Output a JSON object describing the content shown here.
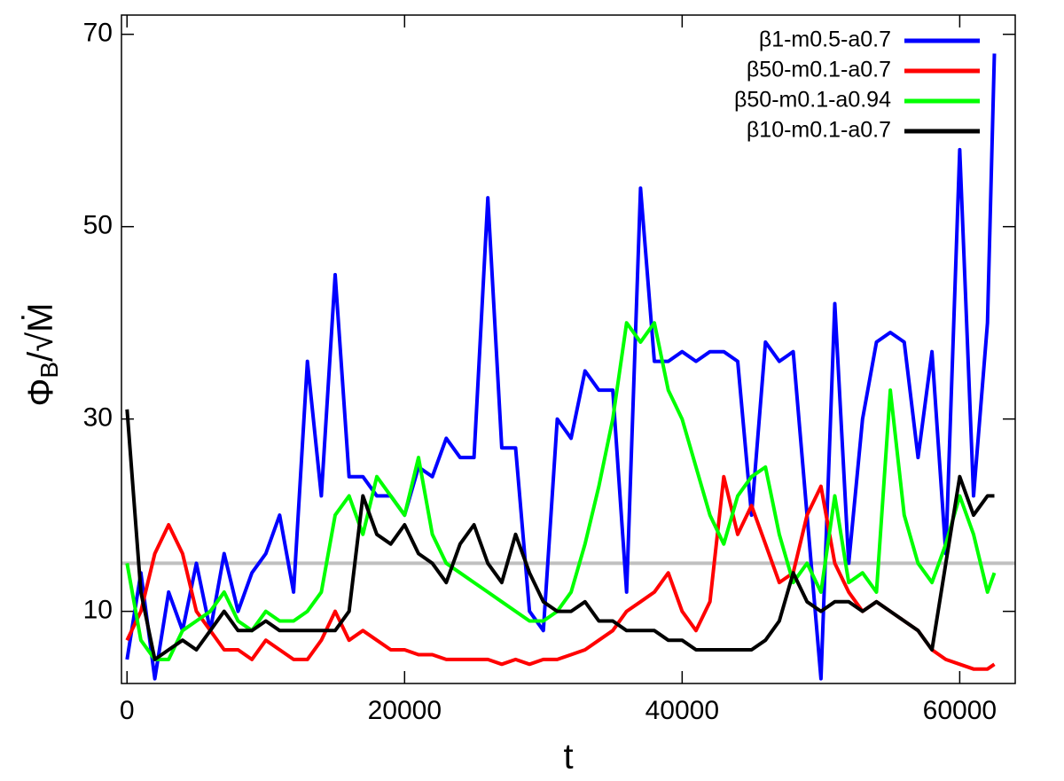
{
  "chart_data": {
    "type": "line",
    "xlabel": "t",
    "ylabel": [
      "Φ",
      "B",
      "/√Ṁ"
    ],
    "xlim": [
      -400,
      64000
    ],
    "ylim": [
      2.5,
      72
    ],
    "xticks": [
      0,
      20000,
      40000,
      60000
    ],
    "yticks": [
      10,
      30,
      50,
      70
    ],
    "legend": "upper right",
    "hline": {
      "value": 15,
      "color": "#c0c0c0"
    },
    "x": [
      0,
      1000,
      2000,
      3000,
      4000,
      5000,
      6000,
      7000,
      8000,
      9000,
      10000,
      11000,
      12000,
      13000,
      14000,
      15000,
      16000,
      17000,
      18000,
      19000,
      20000,
      21000,
      22000,
      23000,
      24000,
      25000,
      26000,
      27000,
      28000,
      29000,
      30000,
      31000,
      32000,
      33000,
      34000,
      35000,
      36000,
      37000,
      38000,
      39000,
      40000,
      41000,
      42000,
      43000,
      44000,
      45000,
      46000,
      47000,
      48000,
      49000,
      50000,
      51000,
      52000,
      53000,
      54000,
      55000,
      56000,
      57000,
      58000,
      59000,
      60000,
      61000,
      62000,
      62500
    ],
    "series": [
      {
        "name": "β1-m0.5-a0.7",
        "color": "#0000ff",
        "values": [
          5,
          14,
          3,
          12,
          8,
          15,
          8,
          16,
          10,
          14,
          16,
          20,
          12,
          36,
          22,
          45,
          24,
          24,
          22,
          22,
          20,
          25,
          24,
          28,
          26,
          26,
          53,
          27,
          27,
          10,
          8,
          30,
          28,
          35,
          33,
          33,
          12,
          54,
          36,
          36,
          37,
          36,
          37,
          37,
          36,
          20,
          38,
          36,
          37,
          20,
          3,
          42,
          15,
          30,
          38,
          39,
          38,
          26,
          37,
          16,
          58,
          22,
          40,
          68
        ]
      },
      {
        "name": "β50-m0.1-a0.7",
        "color": "#ff0000",
        "values": [
          7,
          10,
          16,
          19,
          16,
          10,
          8,
          6,
          6,
          5,
          7,
          6,
          5,
          5,
          7,
          10,
          7,
          8,
          7,
          6,
          6,
          5.5,
          5.5,
          5,
          5,
          5,
          5,
          4.5,
          5,
          4.5,
          5,
          5,
          5.5,
          6,
          7,
          8,
          10,
          11,
          12,
          14,
          10,
          8,
          11,
          24,
          18,
          21,
          17,
          13,
          14,
          20,
          23,
          15,
          12,
          10,
          11,
          10,
          9,
          8,
          6,
          5,
          4.5,
          4,
          4,
          4.5
        ]
      },
      {
        "name": "β50-m0.1-a0.94",
        "color": "#00ff00",
        "values": [
          15,
          7,
          5,
          5,
          8,
          9,
          10,
          12,
          9,
          8,
          10,
          9,
          9,
          10,
          12,
          20,
          22,
          18,
          24,
          22,
          20,
          26,
          18,
          15,
          14,
          13,
          12,
          11,
          10,
          9,
          9,
          10,
          12,
          17,
          23,
          30,
          40,
          38,
          40,
          33,
          30,
          25,
          20,
          17,
          22,
          24,
          25,
          18,
          13,
          15,
          12,
          22,
          13,
          14,
          12,
          33,
          20,
          15,
          13,
          17,
          22,
          18,
          12,
          14
        ]
      },
      {
        "name": "β10-m0.1-a0.7",
        "color": "#000000",
        "values": [
          31,
          12,
          5,
          6,
          7,
          6,
          8,
          10,
          8,
          8,
          9,
          8,
          8,
          8,
          8,
          8,
          10,
          22,
          18,
          17,
          19,
          16,
          15,
          13,
          17,
          19,
          15,
          13,
          18,
          14,
          11,
          10,
          10,
          11,
          9,
          9,
          8,
          8,
          8,
          7,
          7,
          6,
          6,
          6,
          6,
          6,
          7,
          9,
          14,
          11,
          10,
          11,
          11,
          10,
          11,
          10,
          9,
          8,
          6,
          15,
          24,
          20,
          22,
          22
        ]
      }
    ]
  }
}
